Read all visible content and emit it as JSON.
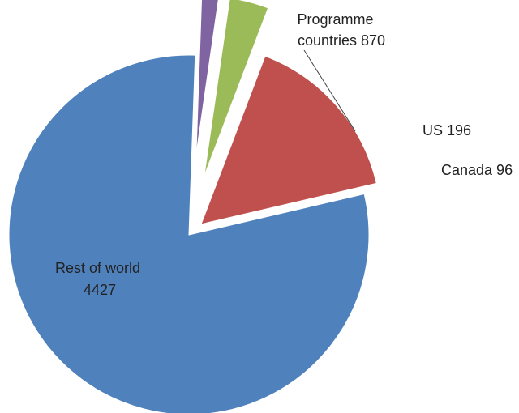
{
  "chart_data": {
    "type": "pie",
    "title": "",
    "slices": [
      {
        "label": "Rest of world",
        "value": 4427,
        "color": "#4F81BD",
        "exploded": false
      },
      {
        "label": "Programme countries",
        "value": 870,
        "color": "#C0504D",
        "exploded": true
      },
      {
        "label": "US",
        "value": 196,
        "color": "#9BBB59",
        "exploded": true
      },
      {
        "label": "Canada",
        "value": 96,
        "color": "#8064A2",
        "exploded": true
      }
    ],
    "data_labels": [
      {
        "lines": [
          "Rest of world",
          "4427"
        ]
      },
      {
        "lines": [
          "Programme",
          "countries 870"
        ]
      },
      {
        "lines": [
          "US 196"
        ]
      },
      {
        "lines": [
          "Canada 96"
        ]
      }
    ],
    "legend": false
  }
}
